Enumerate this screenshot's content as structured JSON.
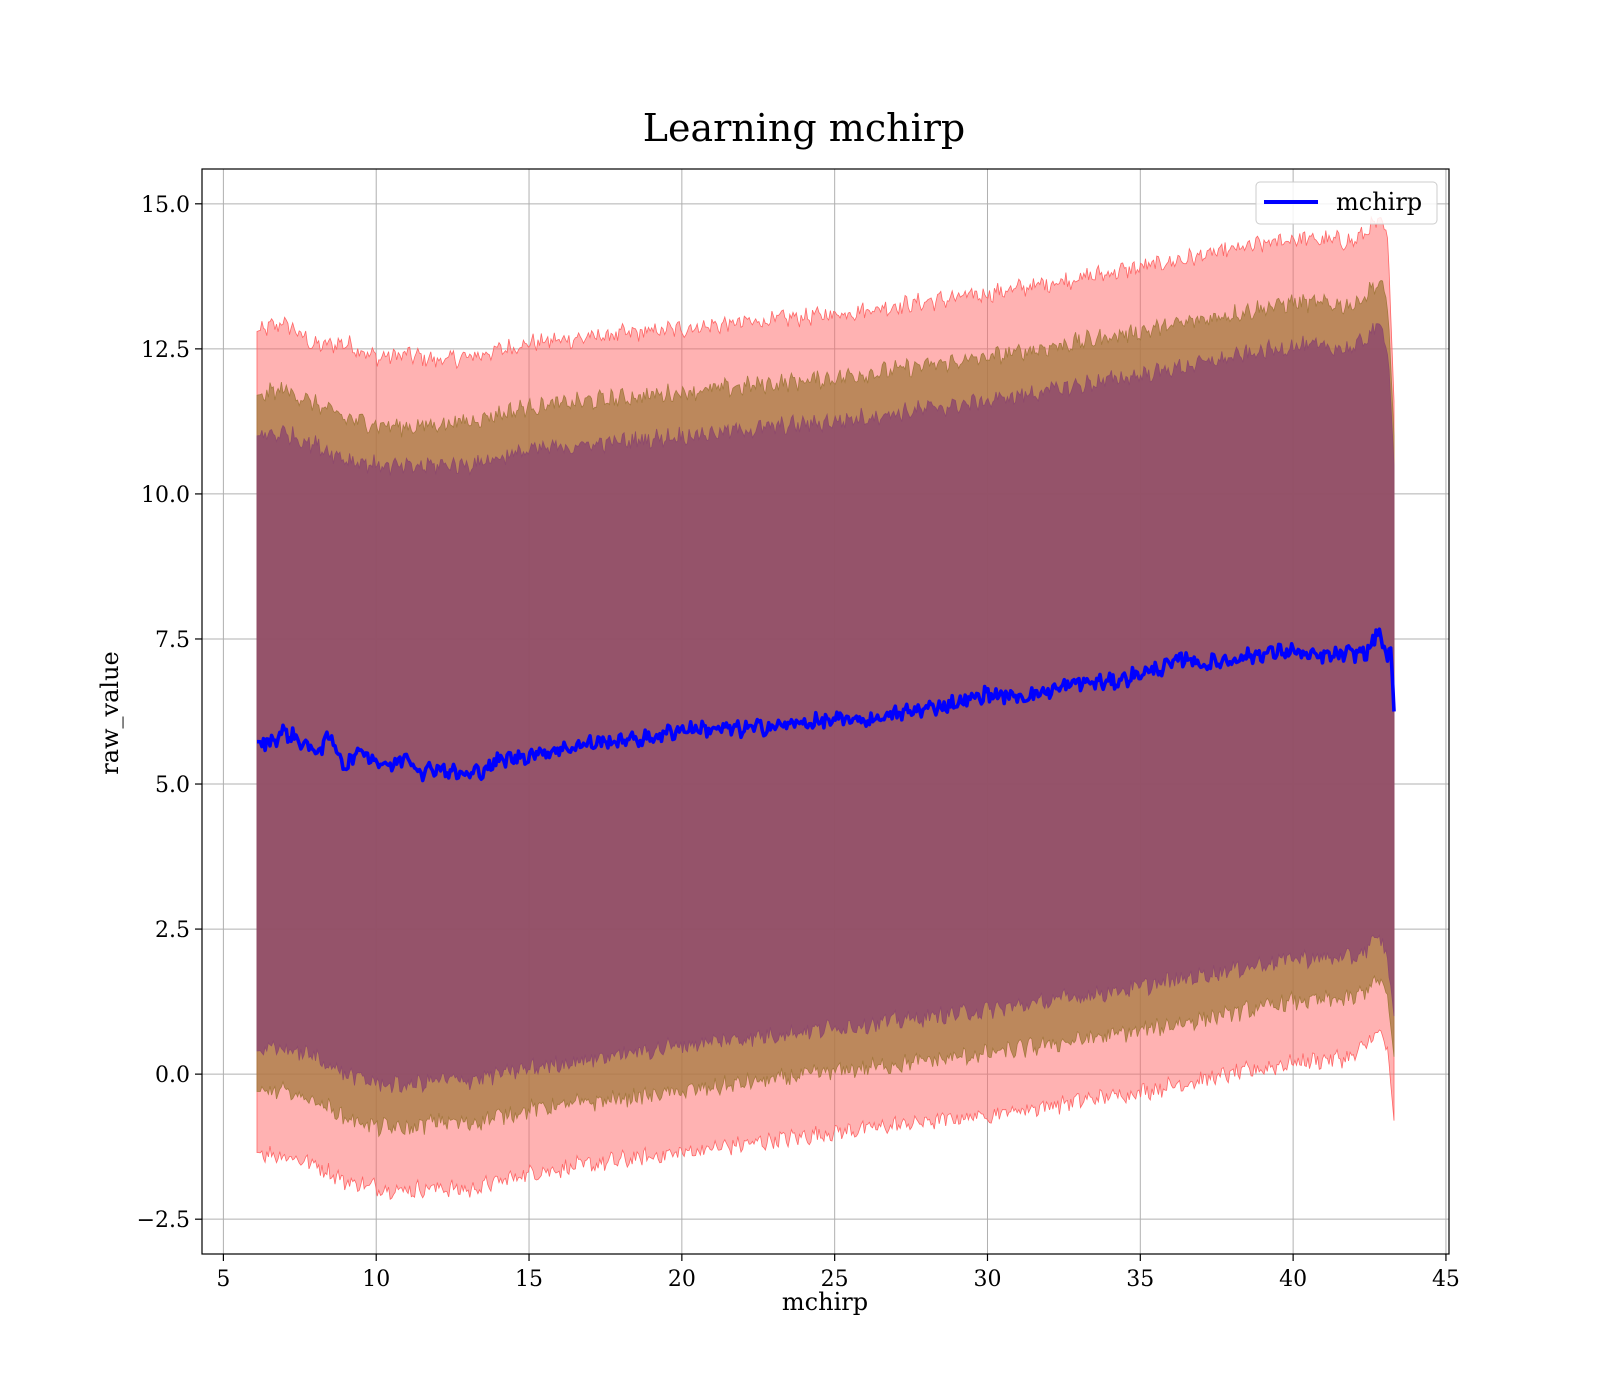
{
  "chart_data": {
    "type": "line",
    "title": "Learning mchirp",
    "xlabel": "mchirp",
    "ylabel": "raw_value",
    "xlim": [
      4.3,
      45.1
    ],
    "ylim": [
      -3.1,
      15.6
    ],
    "xticks": [
      5,
      10,
      15,
      20,
      25,
      30,
      35,
      40,
      45
    ],
    "yticks": [
      -2.5,
      0.0,
      2.5,
      5.0,
      7.5,
      10.0,
      12.5,
      15.0
    ],
    "xtick_labels": [
      "5",
      "10",
      "15",
      "20",
      "25",
      "30",
      "35",
      "40",
      "45"
    ],
    "ytick_labels": [
      "−2.5",
      "0.0",
      "2.5",
      "5.0",
      "7.5",
      "10.0",
      "12.5",
      "15.0"
    ],
    "grid": true,
    "legend": {
      "position": "top-right",
      "entries": [
        "mchirp"
      ]
    },
    "line_color": "#0000ff",
    "band_colors": {
      "outer": "#ff6666",
      "middle": "#a5793f",
      "inner": "#8e4a6c"
    },
    "series": [
      {
        "name": "mchirp",
        "x": [
          6.1,
          6.5,
          7.0,
          7.5,
          8.0,
          8.5,
          9.0,
          9.5,
          10.0,
          10.5,
          11.0,
          11.5,
          12.0,
          12.5,
          13.0,
          13.5,
          14.0,
          15.0,
          16.0,
          17.0,
          18.0,
          19.0,
          20.0,
          21.0,
          22.0,
          23.0,
          24.0,
          25.0,
          26.0,
          27.0,
          28.0,
          29.0,
          30.0,
          31.0,
          32.0,
          33.0,
          34.0,
          35.0,
          36.0,
          36.5,
          37.0,
          38.0,
          39.0,
          40.0,
          40.5,
          41.0,
          42.0,
          42.5,
          42.8,
          43.0,
          43.2,
          43.3
        ],
        "y": [
          5.73,
          5.72,
          5.9,
          5.75,
          5.55,
          5.8,
          5.3,
          5.6,
          5.4,
          5.3,
          5.5,
          5.2,
          5.3,
          5.2,
          5.15,
          5.25,
          5.4,
          5.5,
          5.6,
          5.7,
          5.75,
          5.8,
          5.95,
          5.95,
          5.95,
          6.0,
          6.05,
          6.1,
          6.1,
          6.2,
          6.3,
          6.4,
          6.55,
          6.5,
          6.6,
          6.75,
          6.75,
          6.9,
          7.05,
          7.2,
          7.05,
          7.15,
          7.25,
          7.3,
          7.2,
          7.2,
          7.25,
          7.3,
          7.7,
          7.2,
          7.35,
          6.25
        ]
      }
    ],
    "bands": [
      {
        "x": [
          6.1,
          7.0,
          8.0,
          9.0,
          10.0,
          11.0,
          12.0,
          13.0,
          15.0,
          20.0,
          25.0,
          30.0,
          35.0,
          40.0,
          42.0,
          42.8,
          43.1,
          43.3
        ],
        "lower": [
          -1.35,
          -1.4,
          -1.55,
          -1.85,
          -1.95,
          -2.0,
          -1.95,
          -2.0,
          -1.7,
          -1.35,
          -1.0,
          -0.7,
          -0.3,
          0.2,
          0.3,
          0.75,
          0.4,
          -0.8
        ],
        "upper": [
          12.8,
          12.95,
          12.55,
          12.6,
          12.35,
          12.4,
          12.3,
          12.35,
          12.6,
          12.85,
          13.1,
          13.45,
          13.9,
          14.4,
          14.35,
          14.7,
          14.4,
          11.6
        ]
      },
      {
        "x": [
          6.1,
          7.0,
          8.0,
          9.0,
          10.0,
          11.0,
          12.0,
          13.0,
          15.0,
          20.0,
          25.0,
          30.0,
          35.0,
          40.0,
          42.0,
          42.8,
          43.1,
          43.3
        ],
        "lower": [
          -0.3,
          -0.3,
          -0.45,
          -0.75,
          -0.9,
          -0.95,
          -0.8,
          -0.85,
          -0.6,
          -0.3,
          0.05,
          0.35,
          0.75,
          1.25,
          1.3,
          1.65,
          1.3,
          0.3
        ],
        "upper": [
          11.7,
          11.8,
          11.55,
          11.3,
          11.2,
          11.15,
          11.2,
          11.25,
          11.5,
          11.75,
          12.0,
          12.35,
          12.8,
          13.3,
          13.25,
          13.65,
          13.3,
          11.0
        ]
      },
      {
        "x": [
          6.1,
          7.0,
          8.0,
          9.0,
          10.0,
          11.0,
          12.0,
          13.0,
          15.0,
          20.0,
          25.0,
          30.0,
          35.0,
          40.0,
          42.0,
          42.8,
          43.1,
          43.3
        ],
        "lower": [
          0.4,
          0.45,
          0.3,
          0.0,
          -0.15,
          -0.2,
          -0.1,
          -0.1,
          0.1,
          0.5,
          0.8,
          1.1,
          1.5,
          2.0,
          2.0,
          2.35,
          2.0,
          1.0
        ],
        "upper": [
          11.0,
          11.05,
          10.85,
          10.6,
          10.5,
          10.45,
          10.5,
          10.5,
          10.75,
          11.0,
          11.25,
          11.6,
          12.05,
          12.55,
          12.5,
          12.9,
          12.55,
          10.5
        ]
      }
    ]
  }
}
